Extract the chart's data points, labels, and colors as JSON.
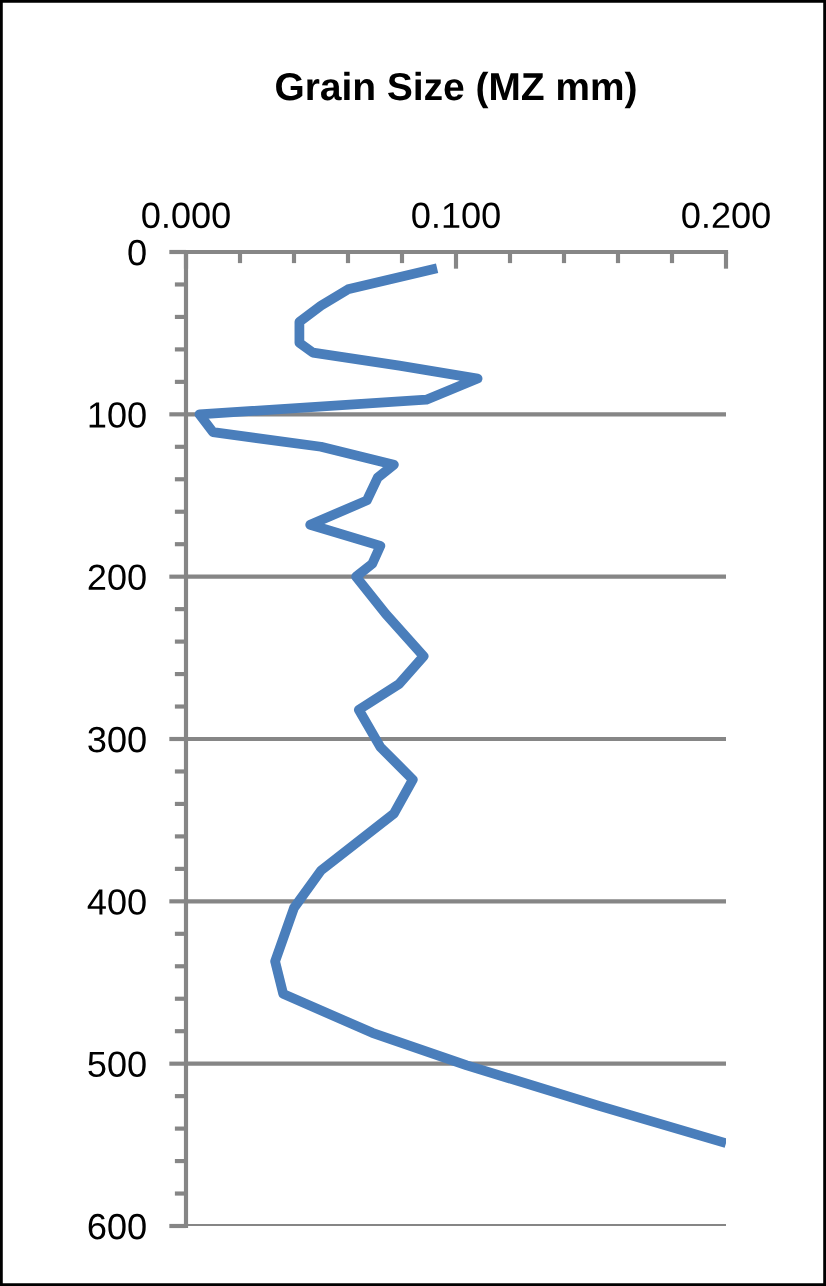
{
  "chart_data": {
    "type": "line",
    "title": "Grain Size (MZ mm)",
    "series": [
      {
        "color": "#4a7ebb",
        "x": [
          0.093,
          0.06,
          0.05,
          0.042,
          0.042,
          0.047,
          0.079,
          0.108,
          0.089,
          0.005,
          0.01,
          0.05,
          0.077,
          0.071,
          0.067,
          0.046,
          0.072,
          0.069,
          0.063,
          0.074,
          0.088,
          0.079,
          0.064,
          0.072,
          0.084,
          0.077,
          0.05,
          0.04,
          0.033,
          0.036,
          0.069,
          0.104,
          0.153,
          0.2
        ],
        "values": [
          10,
          23,
          33,
          43,
          56,
          62,
          70,
          78,
          91,
          100,
          111,
          120,
          131,
          139,
          153,
          168,
          181,
          192,
          200,
          223,
          249,
          266,
          282,
          305,
          325,
          346,
          381,
          404,
          437,
          457,
          481,
          501,
          526,
          549
        ]
      }
    ],
    "xlim": [
      0,
      0.2
    ],
    "xticks": [
      {
        "value": 0,
        "label": "0.000"
      },
      {
        "value": 0.02,
        "label": null
      },
      {
        "value": 0.04,
        "label": null
      },
      {
        "value": 0.06,
        "label": null
      },
      {
        "value": 0.08,
        "label": null
      },
      {
        "value": 0.1,
        "label": "0.100"
      },
      {
        "value": 0.12,
        "label": null
      },
      {
        "value": 0.14,
        "label": null
      },
      {
        "value": 0.16,
        "label": null
      },
      {
        "value": 0.18,
        "label": null
      },
      {
        "value": 0.2,
        "label": "0.200"
      }
    ],
    "ylim": [
      600,
      0
    ],
    "yticks": [
      0,
      {
        "value": 20,
        "label": null
      },
      {
        "value": 40,
        "label": null
      },
      {
        "value": 60,
        "label": null
      },
      {
        "value": 80,
        "label": null
      },
      100,
      {
        "value": 120,
        "label": null
      },
      {
        "value": 140,
        "label": null
      },
      {
        "value": 160,
        "label": null
      },
      {
        "value": 180,
        "label": null
      },
      200,
      {
        "value": 220,
        "label": null
      },
      {
        "value": 240,
        "label": null
      },
      {
        "value": 260,
        "label": null
      },
      {
        "value": 280,
        "label": null
      },
      300,
      {
        "value": 320,
        "label": null
      },
      {
        "value": 340,
        "label": null
      },
      {
        "value": 360,
        "label": null
      },
      {
        "value": 380,
        "label": null
      },
      400,
      {
        "value": 420,
        "label": null
      },
      {
        "value": 440,
        "label": null
      },
      {
        "value": 460,
        "label": null
      },
      {
        "value": 480,
        "label": null
      },
      500,
      {
        "value": 520,
        "label": null
      },
      {
        "value": 540,
        "label": null
      },
      {
        "value": 560,
        "label": null
      },
      {
        "value": 580,
        "label": null
      },
      600
    ],
    "grid": "y",
    "legend": false,
    "marker": "none",
    "line_style": "solid"
  }
}
